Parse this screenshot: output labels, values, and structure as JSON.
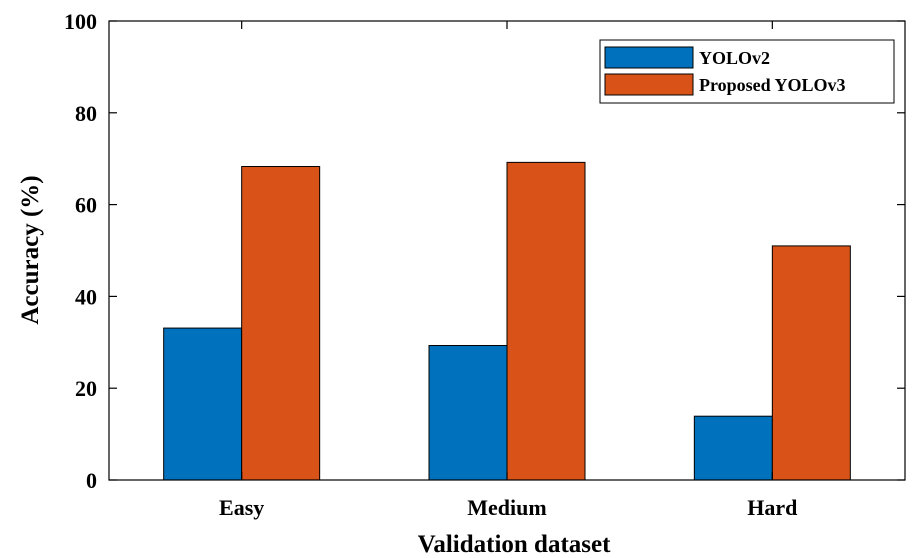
{
  "chart_data": {
    "type": "bar",
    "categories": [
      "Easy",
      "Medium",
      "Hard"
    ],
    "series": [
      {
        "name": "YOLOv2",
        "values": [
          33.1,
          29.3,
          13.9
        ],
        "color": "#0072BD"
      },
      {
        "name": "Proposed YOLOv3",
        "values": [
          68.3,
          69.2,
          51.0
        ],
        "color": "#D95319"
      }
    ],
    "xlabel": "Validation dataset",
    "ylabel": "Accuracy (%)",
    "ylim": [
      0,
      100
    ],
    "yticks": [
      0,
      20,
      40,
      60,
      80,
      100
    ],
    "grid": false,
    "legend_position": "top-right"
  }
}
